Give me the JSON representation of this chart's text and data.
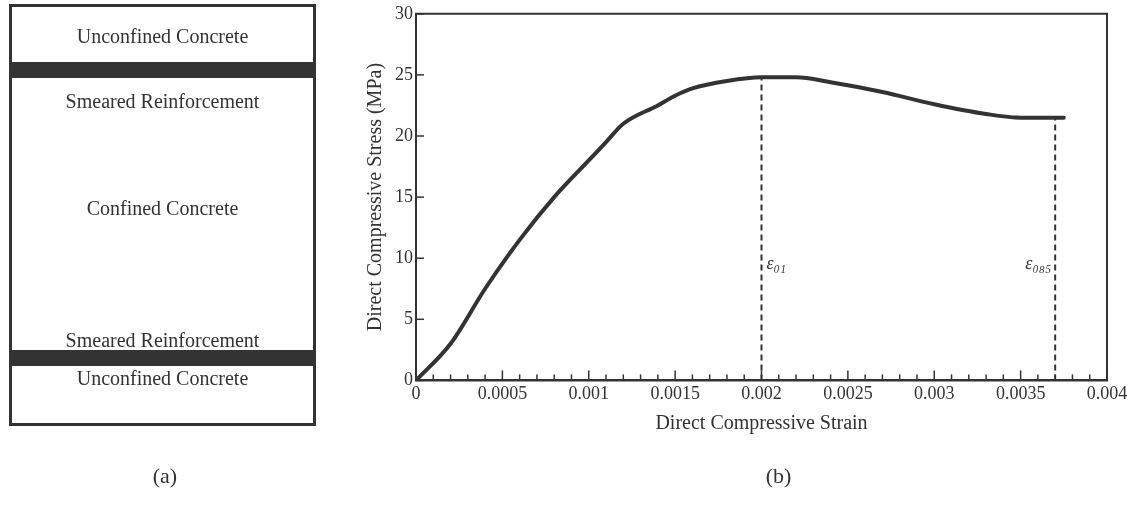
{
  "chart_data": [
    {
      "type": "other",
      "annotations": [
        "Unconfined Concrete",
        "Smeared Reinforcement",
        "Confined Concrete",
        "Smeared Reinforcement",
        "Unconfined Concrete",
        "(a)"
      ]
    },
    {
      "type": "line",
      "xlabel": "Direct Compressive Strain",
      "ylabel": "Direct Compressive Stress (MPa)",
      "annotations": [
        "(b)"
      ],
      "series": [
        {
          "color": "#333333",
          "x": [
            0,
            0.0002,
            0.0004,
            0.0006,
            0.0008,
            0.001,
            0.0011,
            0.0012,
            0.0014,
            0.0015,
            0.0016,
            0.0018,
            0.002,
            0.0022,
            0.0024,
            0.0027,
            0.003,
            0.0033,
            0.0035,
            0.00375
          ],
          "values": [
            0,
            3,
            7.5,
            11.5,
            15,
            18,
            19.5,
            21,
            22.5,
            23.3,
            23.9,
            24.5,
            24.8,
            24.8,
            24.4,
            23.6,
            22.6,
            21.8,
            21.5,
            21.5
          ]
        }
      ],
      "xlim": [
        0,
        0.004
      ],
      "xticks": [
        0,
        {
          "value": 0.0001,
          "label": null
        },
        {
          "value": 0.0002,
          "label": null
        },
        {
          "value": 0.0003,
          "label": null
        },
        {
          "value": 0.0004,
          "label": null
        },
        0.0005,
        {
          "value": 0.0006,
          "label": null
        },
        {
          "value": 0.0007,
          "label": null
        },
        {
          "value": 0.0008,
          "label": null
        },
        {
          "value": 0.0009,
          "label": null
        },
        0.001,
        {
          "value": 0.0011,
          "label": null
        },
        {
          "value": 0.0012,
          "label": null
        },
        {
          "value": 0.0013,
          "label": null
        },
        {
          "value": 0.0014,
          "label": null
        },
        0.0015,
        {
          "value": 0.0016,
          "label": null
        },
        {
          "value": 0.0017,
          "label": null
        },
        {
          "value": 0.0018,
          "label": null
        },
        {
          "value": 0.0019,
          "label": null
        },
        0.002,
        {
          "value": 0.0021,
          "label": null
        },
        {
          "value": 0.0022,
          "label": null
        },
        {
          "value": 0.0023,
          "label": null
        },
        {
          "value": 0.0024,
          "label": null
        },
        0.0025,
        {
          "value": 0.0026,
          "label": null
        },
        {
          "value": 0.0027,
          "label": null
        },
        {
          "value": 0.0028,
          "label": null
        },
        {
          "value": 0.0029,
          "label": null
        },
        0.003,
        {
          "value": 0.0031,
          "label": null
        },
        {
          "value": 0.0032,
          "label": null
        },
        {
          "value": 0.0033,
          "label": null
        },
        {
          "value": 0.0034,
          "label": null
        },
        0.0035,
        {
          "value": 0.0036,
          "label": null
        },
        {
          "value": 0.0037,
          "label": null
        },
        {
          "value": 0.0038,
          "label": null
        },
        {
          "value": 0.0039,
          "label": null
        },
        0.004
      ],
      "ylim": [
        0,
        30
      ],
      "yticks": [
        0,
        5,
        10,
        15,
        20,
        25,
        30
      ],
      "grid": false,
      "legend": false,
      "marker": "none",
      "line_style": "solid",
      "ref_lines": [
        {
          "axis": "x",
          "value": 0.002,
          "label": "ε₀₁",
          "line_style": "dashed",
          "color": "#333333"
        },
        {
          "axis": "x",
          "value": 0.0037,
          "label": "ε₀₈₅",
          "line_style": "dashed",
          "color": "#333333"
        }
      ]
    }
  ]
}
